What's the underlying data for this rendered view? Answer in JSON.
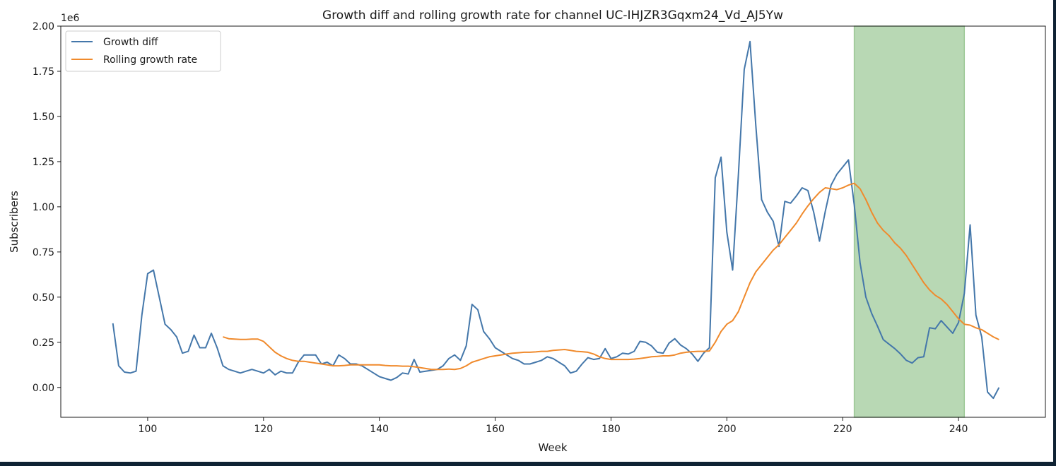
{
  "chart_data": {
    "type": "line",
    "title": "Growth diff and rolling growth rate for channel UC-IHJZR3Gqxm24_Vd_AJ5Yw",
    "xlabel": "Week",
    "ylabel": "Subscribers",
    "y_scale_label": "1e6",
    "xlim": [
      85,
      255
    ],
    "ylim": [
      -0.165,
      2.0
    ],
    "x_ticks": [
      100,
      120,
      140,
      160,
      180,
      200,
      220,
      240
    ],
    "y_ticks": [
      0.0,
      0.25,
      0.5,
      0.75,
      1.0,
      1.25,
      1.5,
      1.75,
      2.0
    ],
    "y_tick_labels": [
      "0.00",
      "0.25",
      "0.50",
      "0.75",
      "1.00",
      "1.25",
      "1.50",
      "1.75",
      "2.00"
    ],
    "grid": false,
    "legend_position": "top-left",
    "shaded_region": {
      "x_start": 222,
      "x_end": 241,
      "color": "#b8d8b4"
    },
    "series": [
      {
        "name": "Growth diff",
        "color": "#4477aa",
        "x": [
          94,
          95,
          96,
          97,
          98,
          99,
          100,
          101,
          102,
          103,
          104,
          105,
          106,
          107,
          108,
          109,
          110,
          111,
          112,
          113,
          114,
          115,
          116,
          117,
          118,
          119,
          120,
          121,
          122,
          123,
          124,
          125,
          126,
          127,
          128,
          129,
          130,
          131,
          132,
          133,
          134,
          135,
          136,
          137,
          138,
          139,
          140,
          141,
          142,
          143,
          144,
          145,
          146,
          147,
          148,
          149,
          150,
          151,
          152,
          153,
          154,
          155,
          156,
          157,
          158,
          159,
          160,
          161,
          162,
          163,
          164,
          165,
          166,
          167,
          168,
          169,
          170,
          171,
          172,
          173,
          174,
          175,
          176,
          177,
          178,
          179,
          180,
          181,
          182,
          183,
          184,
          185,
          186,
          187,
          188,
          189,
          190,
          191,
          192,
          193,
          194,
          195,
          196,
          197,
          198,
          199,
          200,
          201,
          202,
          203,
          204,
          205,
          206,
          207,
          208,
          209,
          210,
          211,
          212,
          213,
          214,
          215,
          216,
          217,
          218,
          219,
          220,
          221,
          222,
          223,
          224,
          225,
          226,
          227,
          228,
          229,
          230,
          231,
          232,
          233,
          234,
          235,
          236,
          237,
          238,
          239,
          240,
          241,
          242,
          243,
          244,
          245,
          246,
          247
        ],
        "values": [
          0.355,
          0.12,
          0.085,
          0.08,
          0.09,
          0.4,
          0.63,
          0.65,
          0.5,
          0.35,
          0.32,
          0.28,
          0.19,
          0.2,
          0.29,
          0.22,
          0.22,
          0.3,
          0.22,
          0.12,
          0.1,
          0.09,
          0.08,
          0.09,
          0.1,
          0.09,
          0.08,
          0.1,
          0.07,
          0.09,
          0.08,
          0.08,
          0.14,
          0.18,
          0.18,
          0.18,
          0.13,
          0.14,
          0.12,
          0.18,
          0.16,
          0.13,
          0.13,
          0.12,
          0.1,
          0.08,
          0.06,
          0.05,
          0.04,
          0.055,
          0.08,
          0.075,
          0.155,
          0.085,
          0.09,
          0.095,
          0.1,
          0.12,
          0.16,
          0.18,
          0.15,
          0.23,
          0.46,
          0.43,
          0.31,
          0.27,
          0.22,
          0.2,
          0.18,
          0.16,
          0.15,
          0.13,
          0.13,
          0.14,
          0.15,
          0.17,
          0.16,
          0.14,
          0.12,
          0.08,
          0.09,
          0.13,
          0.165,
          0.155,
          0.16,
          0.215,
          0.16,
          0.17,
          0.19,
          0.185,
          0.2,
          0.255,
          0.25,
          0.23,
          0.195,
          0.19,
          0.245,
          0.27,
          0.235,
          0.215,
          0.185,
          0.145,
          0.19,
          0.22,
          1.16,
          1.275,
          0.86,
          0.65,
          1.18,
          1.76,
          1.915,
          1.45,
          1.04,
          0.97,
          0.92,
          0.78,
          1.03,
          1.02,
          1.06,
          1.105,
          1.09,
          0.97,
          0.81,
          0.975,
          1.12,
          1.18,
          1.22,
          1.26,
          1.01,
          0.69,
          0.5,
          0.41,
          0.34,
          0.265,
          0.24,
          0.215,
          0.185,
          0.15,
          0.135,
          0.165,
          0.17,
          0.33,
          0.325,
          0.37,
          0.335,
          0.3,
          0.36,
          0.52,
          0.9,
          0.4,
          0.28,
          -0.025,
          -0.06,
          0.0
        ]
      },
      {
        "name": "Rolling growth rate",
        "color": "#f08a2c",
        "x": [
          113,
          114,
          115,
          116,
          117,
          118,
          119,
          120,
          121,
          122,
          123,
          124,
          125,
          126,
          127,
          128,
          129,
          130,
          131,
          132,
          133,
          134,
          135,
          136,
          137,
          138,
          139,
          140,
          141,
          142,
          143,
          144,
          145,
          146,
          147,
          148,
          149,
          150,
          151,
          152,
          153,
          154,
          155,
          156,
          157,
          158,
          159,
          160,
          161,
          162,
          163,
          164,
          165,
          166,
          167,
          168,
          169,
          170,
          171,
          172,
          173,
          174,
          175,
          176,
          177,
          178,
          179,
          180,
          181,
          182,
          183,
          184,
          185,
          186,
          187,
          188,
          189,
          190,
          191,
          192,
          193,
          194,
          195,
          196,
          197,
          198,
          199,
          200,
          201,
          202,
          203,
          204,
          205,
          206,
          207,
          208,
          209,
          210,
          211,
          212,
          213,
          214,
          215,
          216,
          217,
          218,
          219,
          220,
          221,
          222,
          223,
          224,
          225,
          226,
          227,
          228,
          229,
          230,
          231,
          232,
          233,
          234,
          235,
          236,
          237,
          238,
          239,
          240,
          241,
          242,
          243,
          244,
          245,
          246,
          247
        ],
        "values": [
          0.28,
          0.27,
          0.268,
          0.266,
          0.266,
          0.268,
          0.268,
          0.255,
          0.225,
          0.195,
          0.175,
          0.16,
          0.15,
          0.145,
          0.145,
          0.14,
          0.135,
          0.13,
          0.125,
          0.12,
          0.12,
          0.122,
          0.125,
          0.125,
          0.125,
          0.125,
          0.125,
          0.125,
          0.122,
          0.12,
          0.12,
          0.118,
          0.118,
          0.115,
          0.11,
          0.105,
          0.1,
          0.1,
          0.1,
          0.102,
          0.1,
          0.105,
          0.12,
          0.14,
          0.15,
          0.16,
          0.17,
          0.175,
          0.18,
          0.185,
          0.19,
          0.192,
          0.195,
          0.195,
          0.197,
          0.2,
          0.2,
          0.205,
          0.208,
          0.21,
          0.205,
          0.2,
          0.198,
          0.195,
          0.185,
          0.17,
          0.16,
          0.155,
          0.155,
          0.155,
          0.155,
          0.157,
          0.16,
          0.165,
          0.17,
          0.172,
          0.175,
          0.175,
          0.18,
          0.19,
          0.195,
          0.198,
          0.2,
          0.2,
          0.202,
          0.25,
          0.31,
          0.35,
          0.37,
          0.42,
          0.5,
          0.58,
          0.64,
          0.68,
          0.72,
          0.76,
          0.79,
          0.83,
          0.87,
          0.91,
          0.96,
          1.005,
          1.045,
          1.08,
          1.105,
          1.1,
          1.095,
          1.105,
          1.12,
          1.13,
          1.1,
          1.04,
          0.97,
          0.91,
          0.87,
          0.84,
          0.8,
          0.77,
          0.73,
          0.68,
          0.63,
          0.58,
          0.54,
          0.51,
          0.49,
          0.46,
          0.42,
          0.38,
          0.35,
          0.345,
          0.33,
          0.32,
          0.3,
          0.28,
          0.265
        ]
      }
    ]
  }
}
